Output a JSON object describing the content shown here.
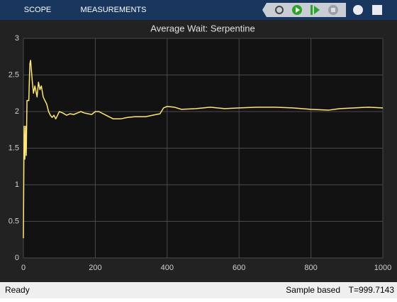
{
  "toolbar": {
    "tabs": [
      "SCOPE",
      "MEASUREMENTS"
    ]
  },
  "chart_data": {
    "type": "line",
    "title": "Average Wait: Serpentine",
    "x": [
      0,
      2,
      4,
      6,
      8,
      10,
      15,
      18,
      20,
      25,
      28,
      32,
      38,
      42,
      46,
      50,
      55,
      60,
      65,
      70,
      75,
      80,
      85,
      90,
      100,
      110,
      120,
      130,
      140,
      150,
      160,
      170,
      180,
      190,
      200,
      210,
      230,
      250,
      270,
      290,
      310,
      340,
      360,
      380,
      390,
      400,
      420,
      440,
      480,
      520,
      560,
      600,
      650,
      700,
      750,
      800,
      850,
      880,
      920,
      960,
      1000
    ],
    "values": [
      0.27,
      1.8,
      1.35,
      1.8,
      1.4,
      2.15,
      2.15,
      2.65,
      2.7,
      2.4,
      2.25,
      2.35,
      2.2,
      2.4,
      2.3,
      2.35,
      2.2,
      2.15,
      2.1,
      2.0,
      1.95,
      1.92,
      1.95,
      1.9,
      2.0,
      1.98,
      1.95,
      1.97,
      1.96,
      1.98,
      2.0,
      1.98,
      1.97,
      1.96,
      2.0,
      2.0,
      1.95,
      1.9,
      1.9,
      1.92,
      1.93,
      1.93,
      1.95,
      1.97,
      2.05,
      2.07,
      2.06,
      2.03,
      2.04,
      2.06,
      2.04,
      2.05,
      2.06,
      2.06,
      2.05,
      2.03,
      2.02,
      2.04,
      2.05,
      2.06,
      2.05
    ],
    "color": "#ffe57a",
    "xlim": [
      0,
      1000
    ],
    "xticks": [
      0,
      200,
      400,
      600,
      800,
      1000
    ],
    "ylim": [
      0,
      3
    ],
    "yticks": [
      0,
      0.5,
      1,
      1.5,
      2,
      2.5,
      3
    ],
    "grid": true
  },
  "status_bar": {
    "state": "Ready",
    "mode": "Sample based",
    "time": "T=999.7143"
  }
}
